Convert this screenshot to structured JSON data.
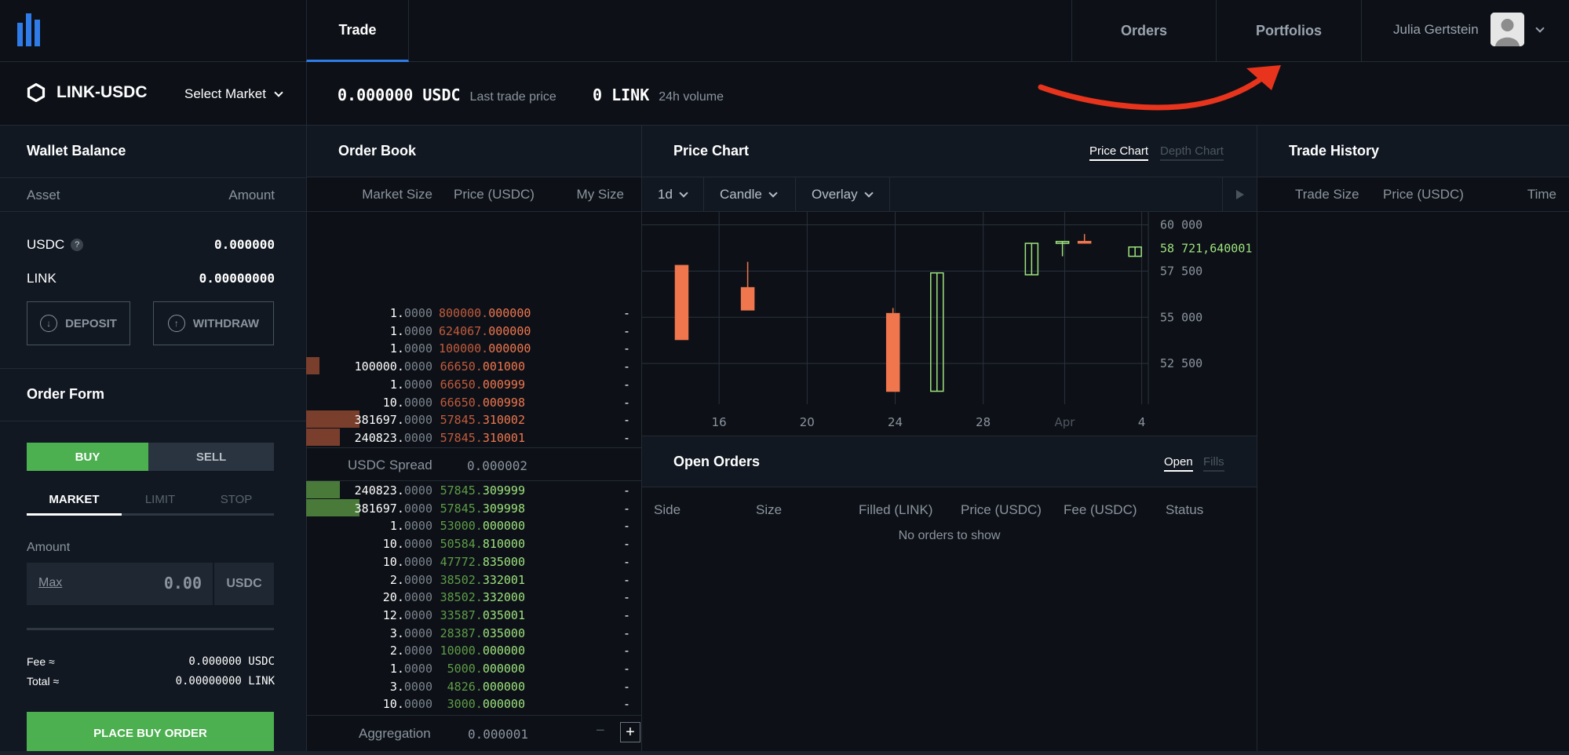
{
  "nav": {
    "trade": "Trade",
    "orders": "Orders",
    "portfolios": "Portfolios",
    "user_name": "Julia Gertstein"
  },
  "market": {
    "pair": "LINK-USDC",
    "select_market": "Select Market",
    "last_trade_value": "0.000000 USDC",
    "last_trade_label": "Last trade price",
    "volume_value": "0 LINK",
    "volume_label": "24h volume"
  },
  "wallet": {
    "title": "Wallet Balance",
    "col_asset": "Asset",
    "col_amount": "Amount",
    "assets": [
      {
        "name": "USDC",
        "help": "?",
        "amount": "0.000000"
      },
      {
        "name": "LINK",
        "amount": "0.00000000"
      }
    ],
    "deposit": "DEPOSIT",
    "withdraw": "WITHDRAW"
  },
  "order_form": {
    "title": "Order Form",
    "buy": "BUY",
    "sell": "SELL",
    "tabs": [
      "MARKET",
      "LIMIT",
      "STOP"
    ],
    "amount_label": "Amount",
    "max": "Max",
    "amount_value": "0.00",
    "currency": "USDC",
    "fee_label": "Fee ≈",
    "fee_value": "0.000000 USDC",
    "total_label": "Total ≈",
    "total_value": "0.00000000 LINK",
    "place_order": "PLACE BUY ORDER"
  },
  "order_book": {
    "title": "Order Book",
    "col_market_size": "Market Size",
    "col_price": "Price (USDC)",
    "col_my_size": "My Size",
    "asks": [
      {
        "size_b": "1.",
        "size_d": "0000",
        "price_d": "800000.",
        "price_b": "000000",
        "my": "-",
        "depth": 0
      },
      {
        "size_b": "1.",
        "size_d": "0000",
        "price_d": "624067.",
        "price_b": "000000",
        "my": "-",
        "depth": 0
      },
      {
        "size_b": "1.",
        "size_d": "0000",
        "price_d": "100000.",
        "price_b": "000000",
        "my": "-",
        "depth": 0
      },
      {
        "size_b": "100000.",
        "size_d": "0000",
        "price_d": "66650.",
        "price_b": "001000",
        "my": "-",
        "depth": 0.04
      },
      {
        "size_b": "1.",
        "size_d": "0000",
        "price_d": "66650.",
        "price_b": "000999",
        "my": "-",
        "depth": 0
      },
      {
        "size_b": "10.",
        "size_d": "0000",
        "price_d": "66650.",
        "price_b": "000998",
        "my": "-",
        "depth": 0
      },
      {
        "size_b": "381697.",
        "size_d": "0000",
        "price_d": "57845.",
        "price_b": "310002",
        "my": "-",
        "depth": 0.16
      },
      {
        "size_b": "240823.",
        "size_d": "0000",
        "price_d": "57845.",
        "price_b": "310001",
        "my": "-",
        "depth": 0.1
      }
    ],
    "spread_label": "USDC Spread",
    "spread_value": "0.000002",
    "bids": [
      {
        "size_b": "240823.",
        "size_d": "0000",
        "price_d": "57845.",
        "price_b": "309999",
        "my": "-",
        "depth": 0.1
      },
      {
        "size_b": "381697.",
        "size_d": "0000",
        "price_d": "57845.",
        "price_b": "309998",
        "my": "-",
        "depth": 0.16
      },
      {
        "size_b": "1.",
        "size_d": "0000",
        "price_d": "53000.",
        "price_b": "000000",
        "my": "-",
        "depth": 0
      },
      {
        "size_b": "10.",
        "size_d": "0000",
        "price_d": "50584.",
        "price_b": "810000",
        "my": "-",
        "depth": 0
      },
      {
        "size_b": "10.",
        "size_d": "0000",
        "price_d": "47772.",
        "price_b": "835000",
        "my": "-",
        "depth": 0
      },
      {
        "size_b": "2.",
        "size_d": "0000",
        "price_d": "38502.",
        "price_b": "332001",
        "my": "-",
        "depth": 0
      },
      {
        "size_b": "20.",
        "size_d": "0000",
        "price_d": "38502.",
        "price_b": "332000",
        "my": "-",
        "depth": 0
      },
      {
        "size_b": "12.",
        "size_d": "0000",
        "price_d": "33587.",
        "price_b": "035001",
        "my": "-",
        "depth": 0
      },
      {
        "size_b": "3.",
        "size_d": "0000",
        "price_d": "28387.",
        "price_b": "035000",
        "my": "-",
        "depth": 0
      },
      {
        "size_b": "2.",
        "size_d": "0000",
        "price_d": "10000.",
        "price_b": "000000",
        "my": "-",
        "depth": 0
      },
      {
        "size_b": "1.",
        "size_d": "0000",
        "price_d": "5000.",
        "price_b": "000000",
        "my": "-",
        "depth": 0
      },
      {
        "size_b": "3.",
        "size_d": "0000",
        "price_d": "4826.",
        "price_b": "000000",
        "my": "-",
        "depth": 0
      },
      {
        "size_b": "10.",
        "size_d": "0000",
        "price_d": "3000.",
        "price_b": "000000",
        "my": "-",
        "depth": 0
      }
    ],
    "aggregation_label": "Aggregation",
    "aggregation_value": "0.000001",
    "minus": "−",
    "plus": "+"
  },
  "price_chart": {
    "title": "Price Chart",
    "tab_price": "Price Chart",
    "tab_depth": "Depth Chart",
    "interval": "1d",
    "style": "Candle",
    "overlay": "Overlay",
    "current_label": "58 721,640001"
  },
  "chart_data": {
    "type": "candlestick",
    "x_ticks": [
      "16",
      "20",
      "24",
      "28",
      "Apr",
      "4"
    ],
    "y_ticks": [
      "60 000",
      "57 500",
      "55 000",
      "52 500"
    ],
    "ylim": [
      50300,
      60700
    ],
    "candles": [
      {
        "x": 14.3,
        "open": 57800,
        "high": 57800,
        "low": 53800,
        "close": 53800,
        "direction": "down"
      },
      {
        "x": 17.3,
        "open": 56600,
        "high": 58000,
        "low": 55400,
        "close": 55400,
        "direction": "down"
      },
      {
        "x": 23.9,
        "open": 55200,
        "high": 55500,
        "low": 51000,
        "close": 51000,
        "direction": "down"
      },
      {
        "x": 25.9,
        "open": 51000,
        "high": 57400,
        "low": 51000,
        "close": 57400,
        "direction": "up"
      },
      {
        "x": 30.2,
        "open": 57300,
        "high": 59000,
        "low": 57300,
        "close": 59000,
        "direction": "up"
      },
      {
        "x": 31.6,
        "open": 59000,
        "high": 59100,
        "low": 58300,
        "close": 59100,
        "direction": "up"
      },
      {
        "x": 32.6,
        "open": 59100,
        "high": 59500,
        "low": 59100,
        "close": 59100,
        "direction": "down"
      },
      {
        "x": 34.9,
        "open": 58300,
        "high": 58800,
        "low": 58300,
        "close": 58800,
        "direction": "up"
      }
    ],
    "current_price": 58721.64
  },
  "open_orders": {
    "title": "Open Orders",
    "tab_open": "Open",
    "tab_fills": "Fills",
    "columns": [
      "Side",
      "Size",
      "Filled (LINK)",
      "Price (USDC)",
      "Fee (USDC)",
      "Status"
    ],
    "empty": "No orders to show"
  },
  "trade_history": {
    "title": "Trade History",
    "col_size": "Trade Size",
    "col_price": "Price (USDC)",
    "col_time": "Time"
  },
  "colors": {
    "accent": "#2f7ce8",
    "buy": "#4caf50",
    "ask": "#f0764e",
    "bid": "#9de27d",
    "annotation_arrow": "#e8341c"
  }
}
